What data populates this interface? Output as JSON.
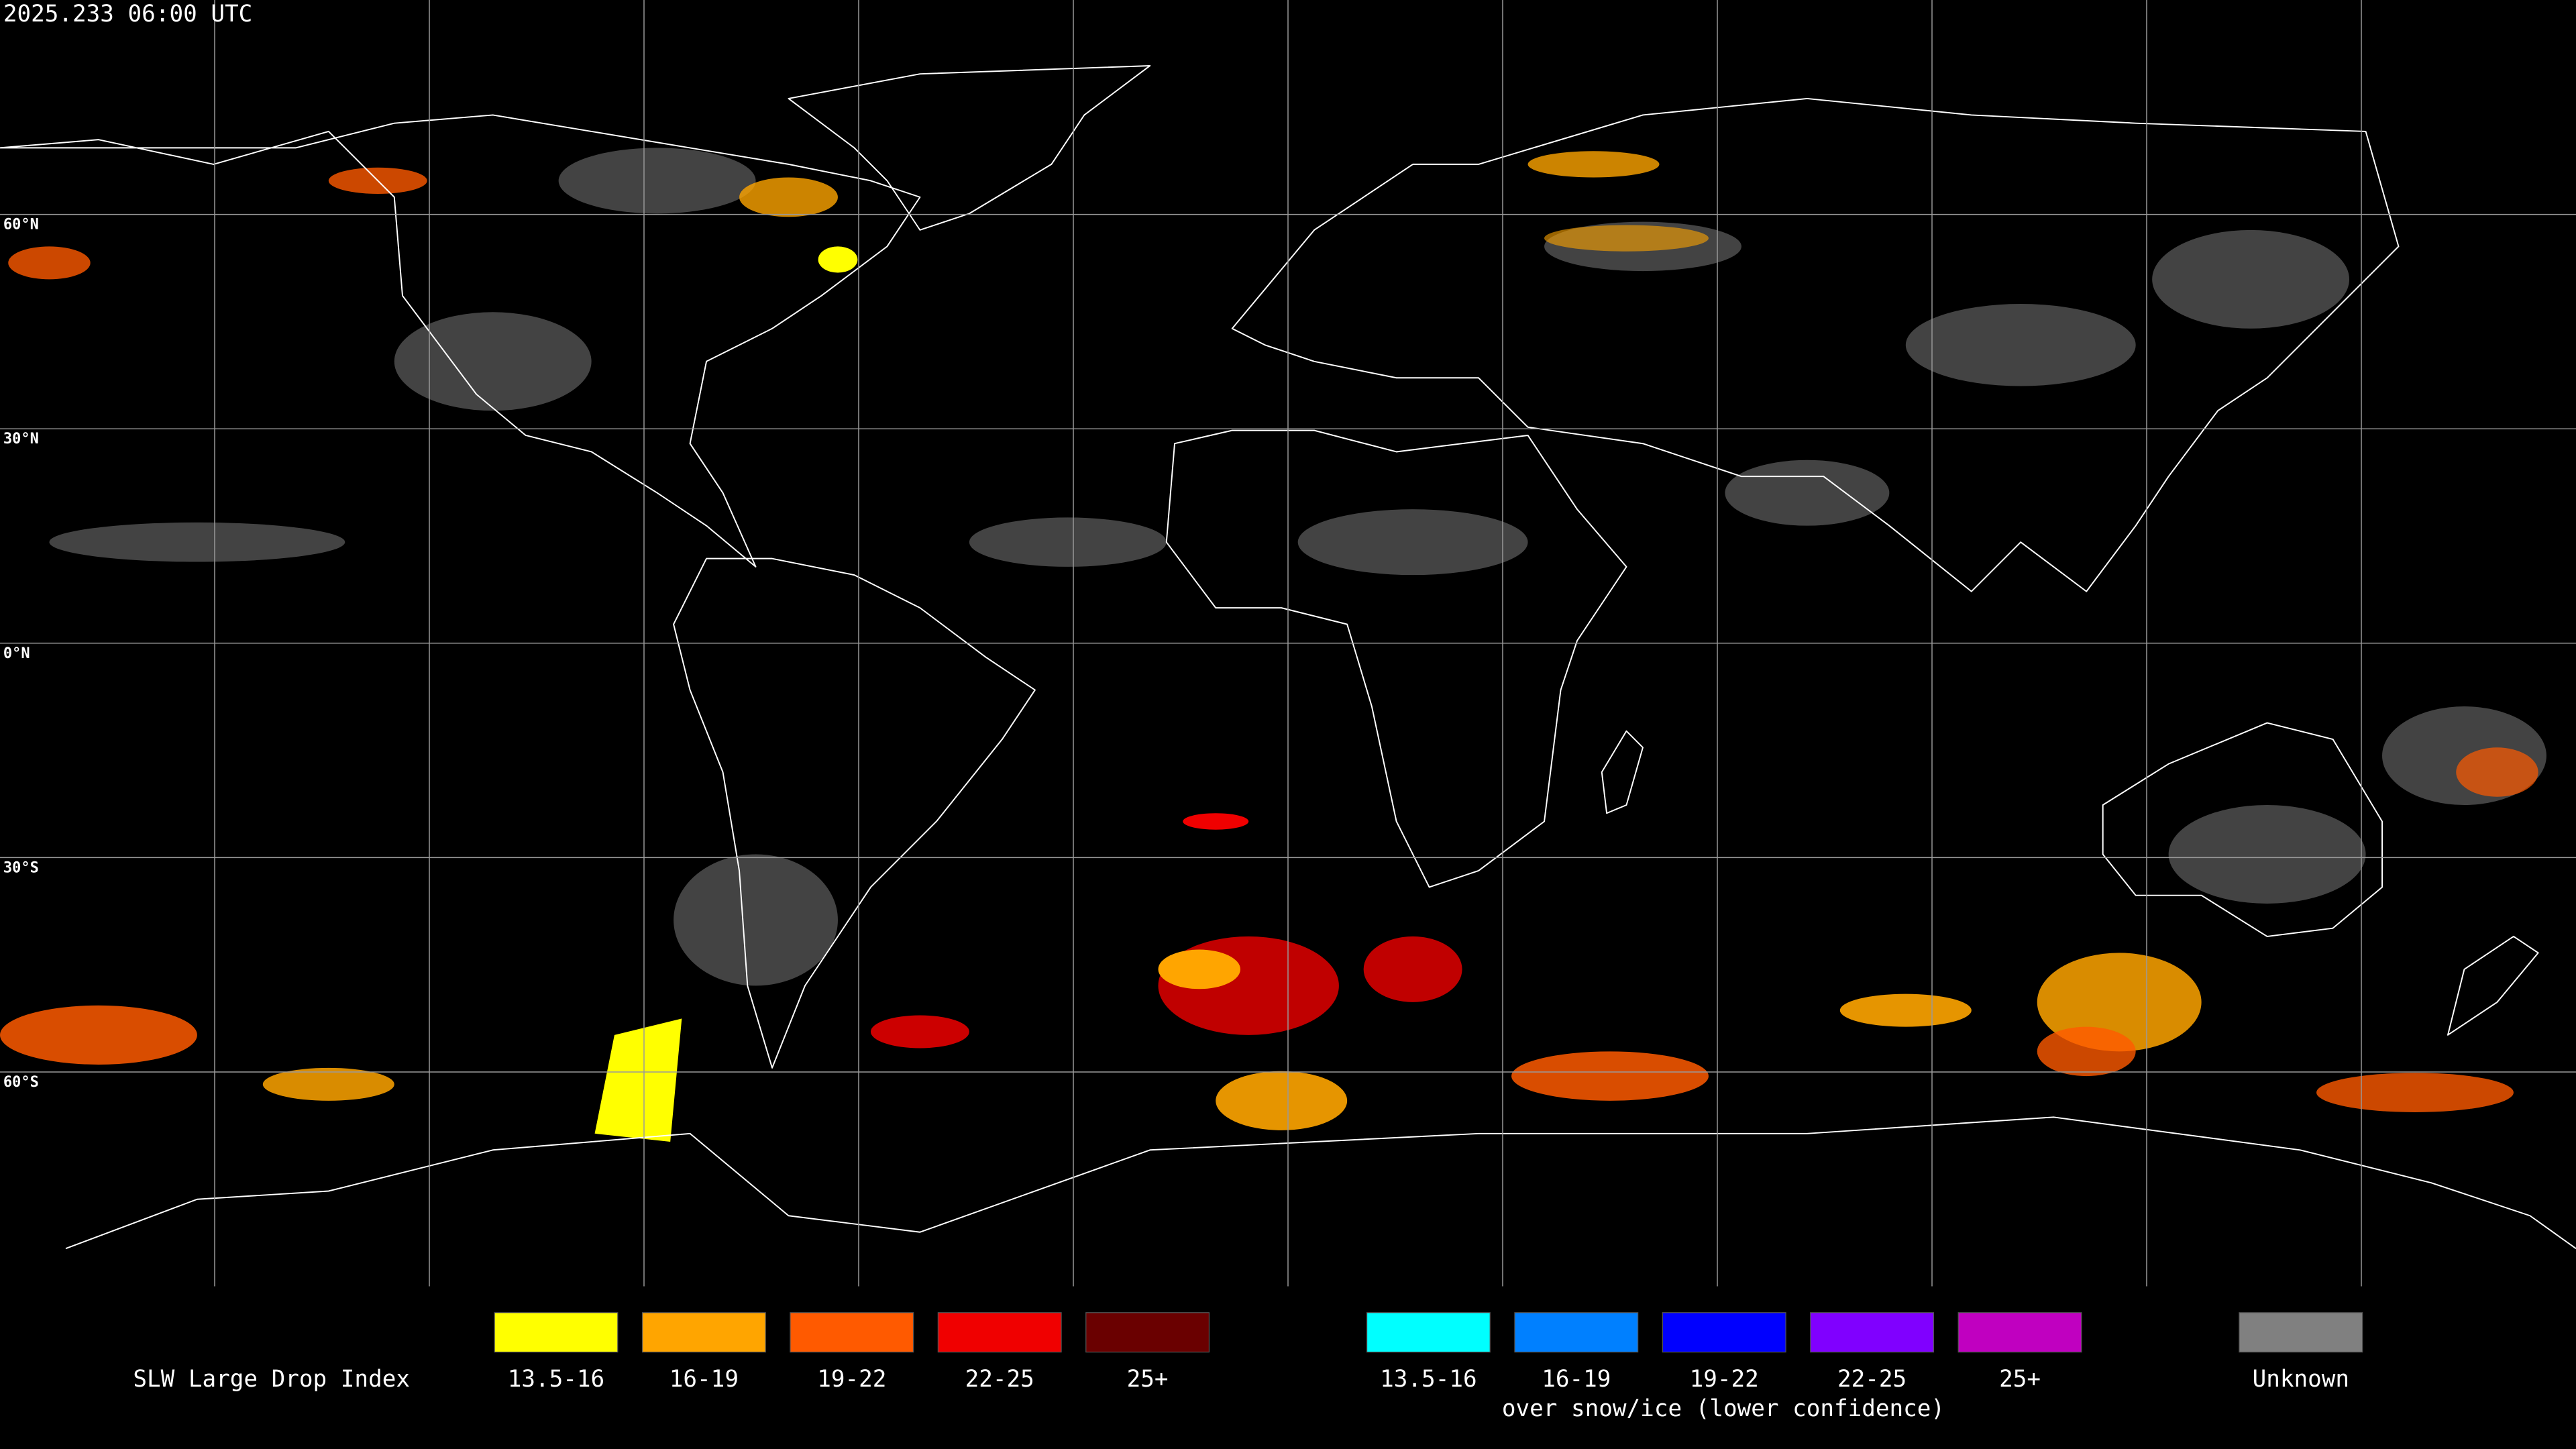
{
  "header": {
    "timestamp": "2025.233 06:00 UTC"
  },
  "map": {
    "latitude_labels": [
      "60°N",
      "30°N",
      "0°N",
      "30°S",
      "60°S"
    ]
  },
  "legend": {
    "title": "SLW Large Drop Index",
    "items": [
      {
        "label": "13.5-16",
        "color": "#ffff00"
      },
      {
        "label": "16-19",
        "color": "#ffa500"
      },
      {
        "label": "19-22",
        "color": "#ff5a00"
      },
      {
        "label": "22-25",
        "color": "#f00000"
      },
      {
        "label": "25+",
        "color": "#6a0000"
      }
    ],
    "snow_items": [
      {
        "label": "13.5-16",
        "color": "#00ffff"
      },
      {
        "label": "16-19",
        "color": "#0080ff"
      },
      {
        "label": "19-22",
        "color": "#0000ff"
      },
      {
        "label": "22-25",
        "color": "#8000ff"
      },
      {
        "label": "25+",
        "color": "#c000c0"
      }
    ],
    "snow_caption": "over snow/ice (lower confidence)",
    "unknown": {
      "label": "Unknown",
      "color": "#808080"
    }
  }
}
